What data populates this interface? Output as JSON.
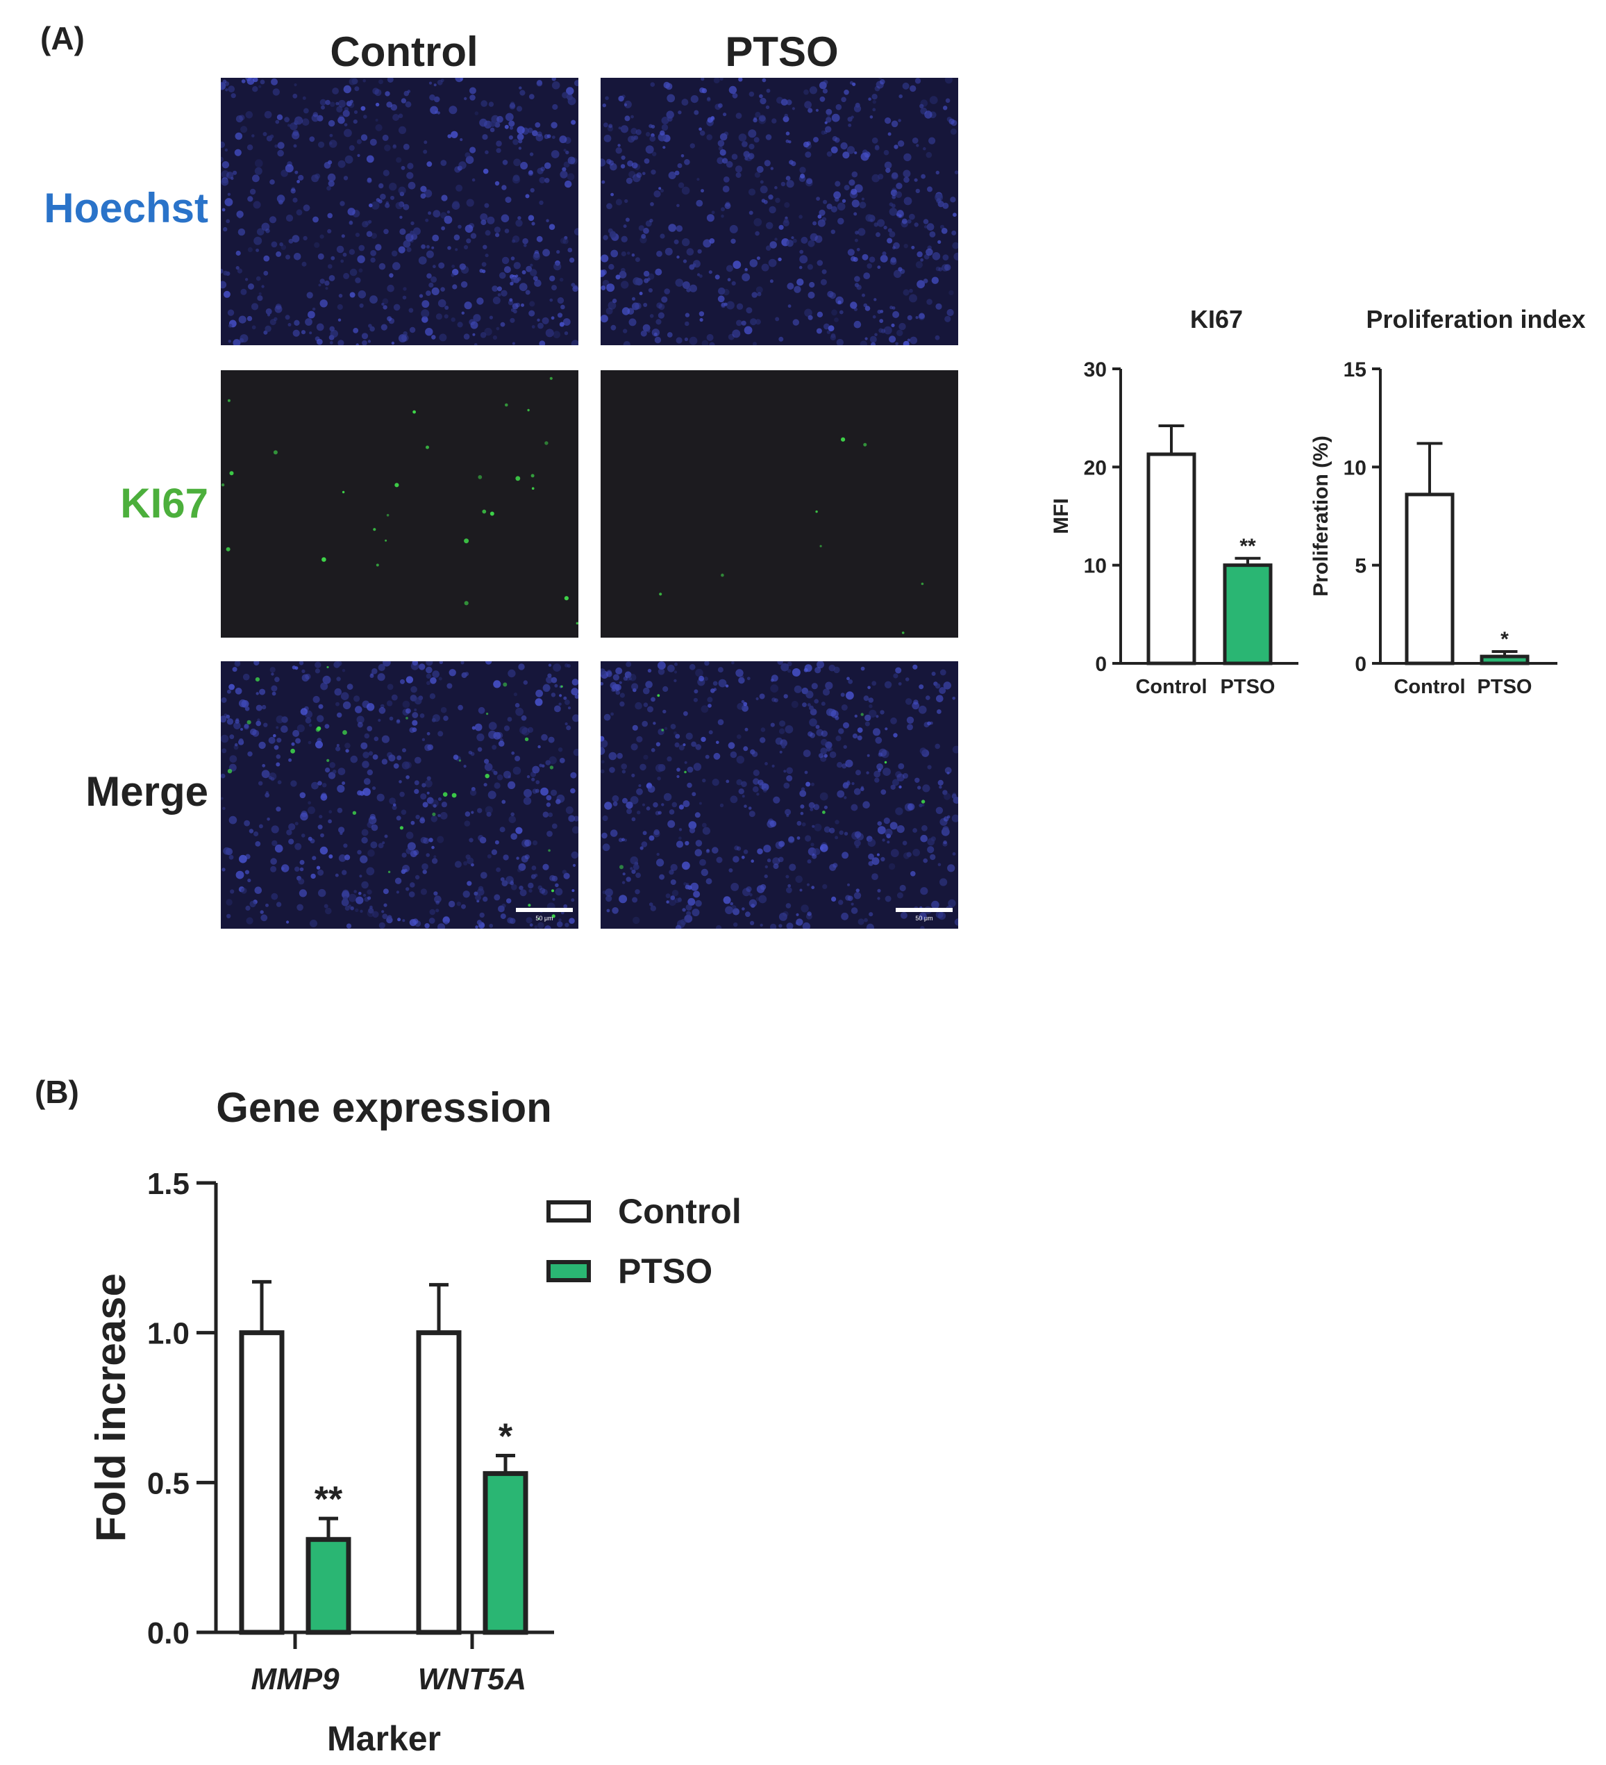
{
  "panel_a": {
    "label": "(A)",
    "columns": [
      "Control",
      "PTSO"
    ],
    "rows": [
      {
        "label": "Hoechst",
        "color": "#2a73c9"
      },
      {
        "label": "KI67",
        "color": "#4caf3c"
      },
      {
        "label": "Merge",
        "color": "#222222"
      }
    ],
    "scalebar_text": "50 μm"
  },
  "panel_b": {
    "label": "(B)"
  },
  "colors": {
    "control": "#ffffff",
    "ptso": "#2ab673",
    "axis": "#222222"
  },
  "chart_data": [
    {
      "type": "bar",
      "title": "KI67",
      "xlabel": "",
      "ylabel": "MFI",
      "categories": [
        "Control",
        "PTSO"
      ],
      "values": [
        21.3,
        10.0
      ],
      "errors": [
        2.9,
        0.7
      ],
      "significance": [
        "",
        "**"
      ],
      "bar_colors": [
        "#ffffff",
        "#2ab673"
      ],
      "ylim": [
        0,
        30
      ],
      "yticks": [
        0,
        10,
        20,
        30
      ],
      "grid": false
    },
    {
      "type": "bar",
      "title": "Proliferation index",
      "xlabel": "",
      "ylabel": "Proliferation (%)",
      "categories": [
        "Control",
        "PTSO"
      ],
      "values": [
        8.6,
        0.35
      ],
      "errors": [
        2.6,
        0.25
      ],
      "significance": [
        "",
        "*"
      ],
      "bar_colors": [
        "#ffffff",
        "#2ab673"
      ],
      "ylim": [
        0,
        15
      ],
      "yticks": [
        0,
        5,
        10,
        15
      ],
      "grid": false
    },
    {
      "type": "bar",
      "title": "Gene expression",
      "xlabel": "Marker",
      "ylabel": "Fold increase",
      "categories": [
        "MMP9",
        "WNT5A"
      ],
      "series": [
        {
          "name": "Control",
          "values": [
            1.0,
            1.0
          ],
          "errors": [
            0.17,
            0.16
          ],
          "significance": [
            "",
            ""
          ],
          "color": "#ffffff"
        },
        {
          "name": "PTSO",
          "values": [
            0.31,
            0.53
          ],
          "errors": [
            0.07,
            0.06
          ],
          "significance": [
            "**",
            "*"
          ],
          "color": "#2ab673"
        }
      ],
      "ylim": [
        0,
        1.5
      ],
      "yticks": [
        "0.0",
        "0.5",
        "1.0",
        "1.5"
      ],
      "legend_position": "top-right",
      "grid": false
    }
  ]
}
